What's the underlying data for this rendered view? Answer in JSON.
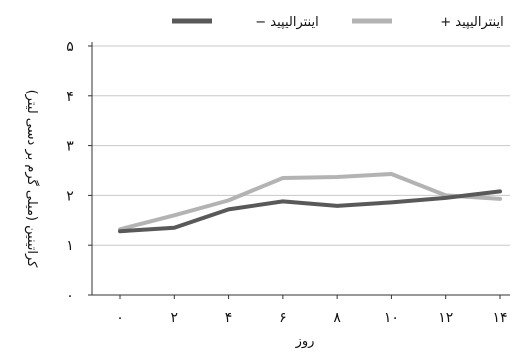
{
  "chart_data": {
    "type": "line",
    "xlabel": "روز",
    "ylabel": "کراتینین (میلی گرم بر دسی لیتر)",
    "x": [
      0,
      2,
      4,
      6,
      8,
      10,
      12,
      14
    ],
    "x_tick_labels": [
      "۰",
      "۲",
      "۴",
      "۶",
      "۸",
      "۱۰",
      "۱۲",
      "۱۴"
    ],
    "ylim": [
      0,
      5
    ],
    "y_ticks": [
      0,
      1,
      2,
      3,
      4,
      5
    ],
    "y_tick_labels": [
      "۰",
      "۱",
      "۲",
      "۳",
      "۴",
      "۵"
    ],
    "grid": true,
    "legend_position": "top",
    "series": [
      {
        "name": "اینترالیپید +",
        "color": "#b3b3b3",
        "values": [
          1.32,
          1.6,
          1.9,
          2.35,
          2.37,
          2.43,
          2.0,
          1.93
        ]
      },
      {
        "name": "اینترالیپید −",
        "color": "#595959",
        "values": [
          1.28,
          1.35,
          1.72,
          1.88,
          1.79,
          1.86,
          1.95,
          2.08
        ]
      }
    ]
  }
}
